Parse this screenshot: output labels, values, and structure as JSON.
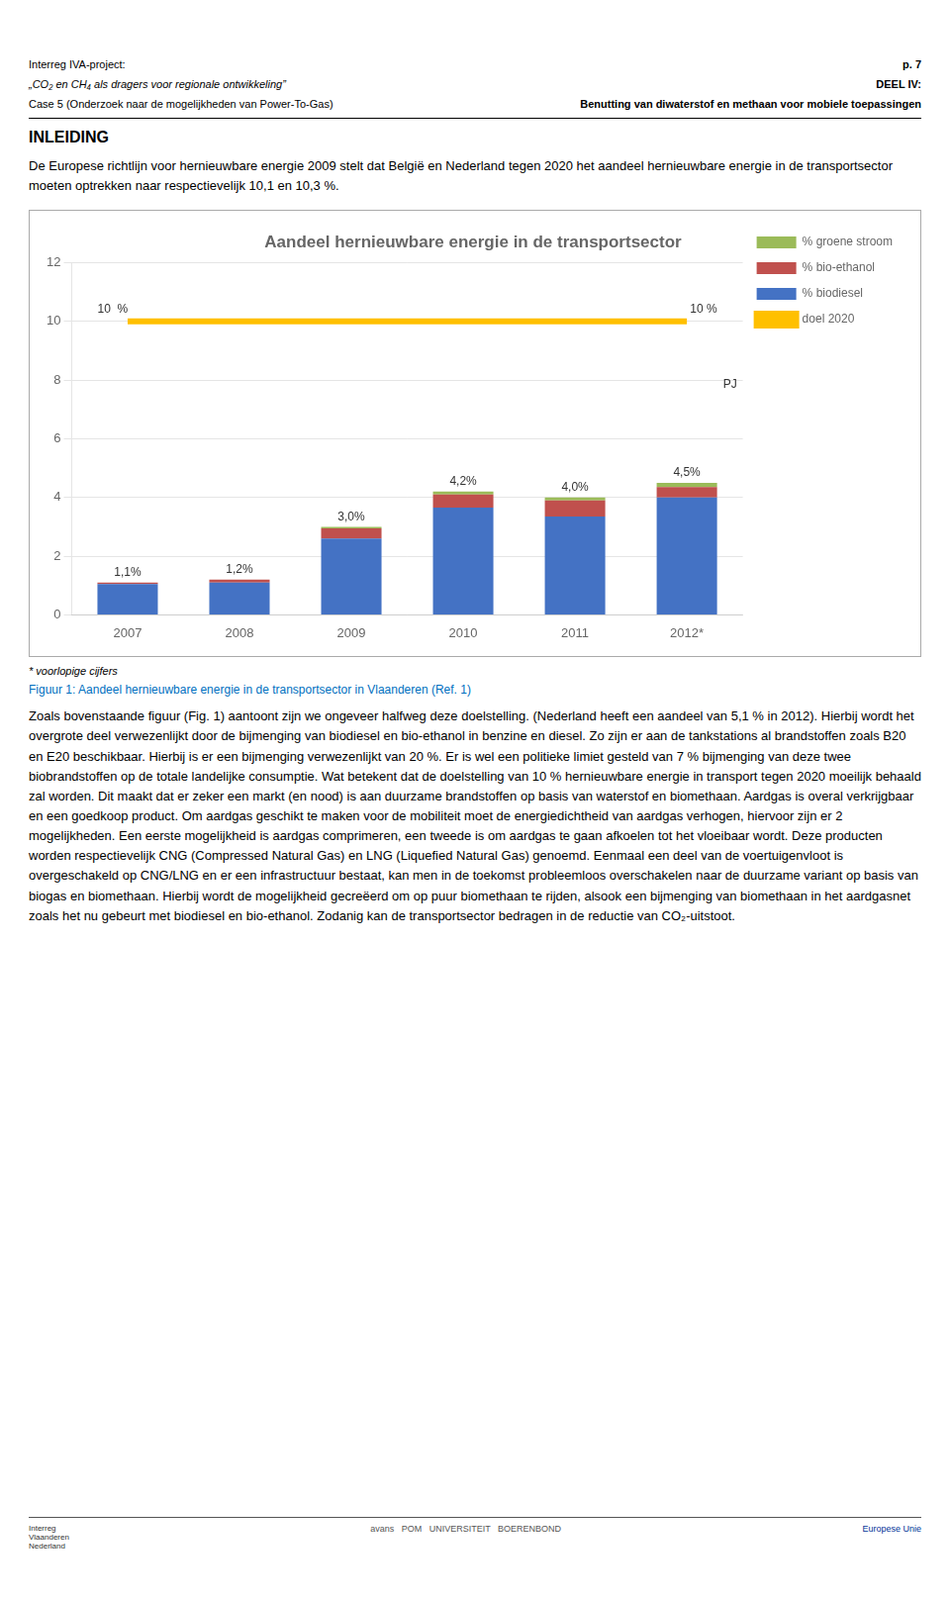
{
  "header_left": [
    "Interreg IVA-project:",
    "„CO₂ en CH₄ als dragers voor regionale ontwikkeling”",
    "Case 5 (Onderzoek naar de mogelijkheden van Power-To-Gas)"
  ],
  "header_right": [
    "p. 7",
    "DEEL IV:",
    "Benutting van diwaterstof en methaan voor mobiele toepassingen"
  ],
  "section_title": "INLEIDING",
  "intro_text": "De Europese richtlijn voor hernieuwbare energie 2009 stelt dat België en Nederland tegen 2020 het aandeel hernieuwbare energie in de transportsector moeten optrekken naar respectievelijk 10,1 en 10,3 %.",
  "chart_data": {
    "type": "bar",
    "title": "Aandeel hernieuwbare energie in de transportsector",
    "categories": [
      "2007",
      "2008",
      "2009",
      "2010",
      "2011",
      "2012*"
    ],
    "stacked": true,
    "series": [
      {
        "name": "% biodiesel",
        "color": "#4472C4",
        "values": [
          1.05,
          1.1,
          2.6,
          3.65,
          3.35,
          4.0
        ]
      },
      {
        "name": "% bio-ethanol",
        "color": "#C0504D",
        "values": [
          0.05,
          0.1,
          0.35,
          0.45,
          0.55,
          0.35
        ]
      },
      {
        "name": "% groene stroom",
        "color": "#9BBB59",
        "values": [
          0.0,
          0.0,
          0.05,
          0.1,
          0.1,
          0.15
        ]
      },
      {
        "name": "doel 2020",
        "type": "line",
        "color": "#FFC000",
        "values": [
          10,
          10,
          10,
          10,
          10,
          10
        ]
      }
    ],
    "totals": [
      1.1,
      1.2,
      3.0,
      4.2,
      4.0,
      4.5
    ],
    "totals_labels": [
      "1,1%",
      "1,2%",
      "3,0%",
      "4,2%",
      "4,0%",
      "4,5%"
    ],
    "annotations": [
      {
        "text": "10  %",
        "x": "2007",
        "y": 10
      },
      {
        "text": "10 %",
        "x": "2012*",
        "y": 10
      },
      {
        "text": "PJ",
        "x": "2012*",
        "y": 7.85
      }
    ],
    "ylim": [
      0,
      12
    ],
    "yticks": [
      0,
      2,
      4,
      6,
      8,
      10,
      12
    ],
    "grid": true,
    "legend": "right"
  },
  "footnote": "* voorlopige cijfers",
  "caption": "Figuur 1: Aandeel hernieuwbare energie in de transportsector in Vlaanderen (Ref. 1)",
  "body_text": "Zoals bovenstaande figuur (Fig. 1) aantoont zijn we ongeveer halfweg deze doelstelling. (Nederland heeft een aandeel van 5,1 % in 2012). Hierbij wordt het overgrote deel verwezenlijkt door de bijmenging van biodiesel en bio-ethanol in benzine en diesel. Zo zijn er aan de tankstations al brandstoffen zoals B20 en E20 beschikbaar. Hierbij is er een bijmenging verwezenlijkt van 20 %. Er is wel een politieke limiet gesteld van 7 % bijmenging van deze twee biobrandstoffen op de totale landelijke consumptie. Wat betekent dat de doelstelling van 10 % hernieuwbare energie in transport tegen 2020 moeilijk behaald zal worden. Dit maakt dat er zeker een markt (en nood) is aan duurzame brandstoffen op basis van waterstof en biomethaan. Aardgas is overal verkrijgbaar en een goedkoop product. Om aardgas geschikt te maken voor de mobiliteit moet de energiedichtheid van aardgas verhogen, hiervoor zijn er 2 mogelijkheden. Een eerste mogelijkheid is aardgas comprimeren, een tweede is om aardgas te gaan afkoelen tot het vloeibaar wordt. Deze producten worden respectievelijk CNG (Compressed Natural Gas) en LNG (Liquefied Natural Gas) genoemd. Eenmaal een deel van de voertuigenvloot is overgeschakeld op CNG/LNG en er een infrastructuur bestaat, kan men in de toekomst probleemloos overschakelen naar de duurzame variant op basis van biogas en biomethaan. Hierbij wordt de mogelijkheid gecreëerd om op puur biomethaan te rijden, alsook een bijmenging van biomethaan in het aardgasnet zoals het nu gebeurt met biodiesel en bio-ethanol. Zodanig kan de transportsector bedragen in de reductie van CO₂-uitstoot.",
  "footer": [
    "Interreg\nVlaanderen\nNederland",
    "avans   POM   UNIVERSITEIT   BOERENBOND",
    "Europese Unie"
  ]
}
